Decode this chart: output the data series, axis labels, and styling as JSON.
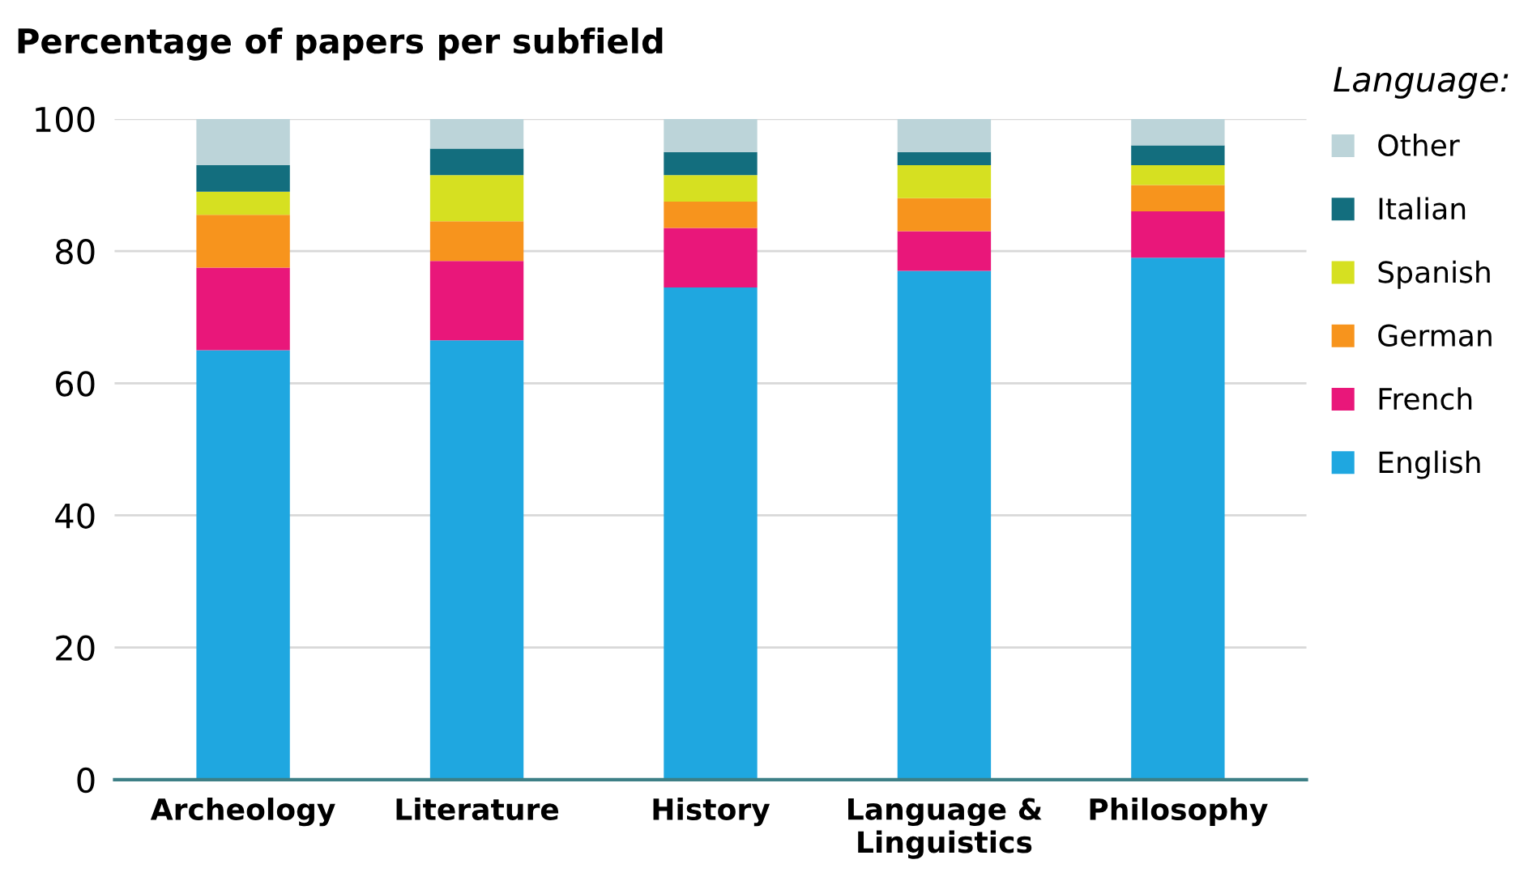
{
  "chart_data": {
    "type": "bar",
    "stacked": true,
    "title": "Percentage of papers per subfield",
    "legend_title": "Language:",
    "categories": [
      "Archeology",
      "Literature",
      "History",
      "Language &\nLinguistics",
      "Philosophy"
    ],
    "series": [
      {
        "name": "English",
        "color": "#1fa7e0",
        "values": [
          65,
          66.5,
          74.5,
          77,
          79
        ]
      },
      {
        "name": "French",
        "color": "#e9177a",
        "values": [
          12.5,
          12,
          9,
          6,
          7
        ]
      },
      {
        "name": "German",
        "color": "#f7941d",
        "values": [
          8,
          6,
          4,
          5,
          4
        ]
      },
      {
        "name": "Spanish",
        "color": "#d6e021",
        "values": [
          3.5,
          7,
          4,
          5,
          3
        ]
      },
      {
        "name": "Italian",
        "color": "#136e7e",
        "values": [
          4,
          4,
          3.5,
          2,
          3
        ]
      },
      {
        "name": "Other",
        "color": "#bcd4d9",
        "values": [
          7,
          4.5,
          5,
          5,
          4
        ]
      }
    ],
    "ylim": [
      0,
      100
    ],
    "yticks": [
      0,
      20,
      40,
      60,
      80,
      100
    ],
    "grid": "y",
    "legend": "right"
  }
}
